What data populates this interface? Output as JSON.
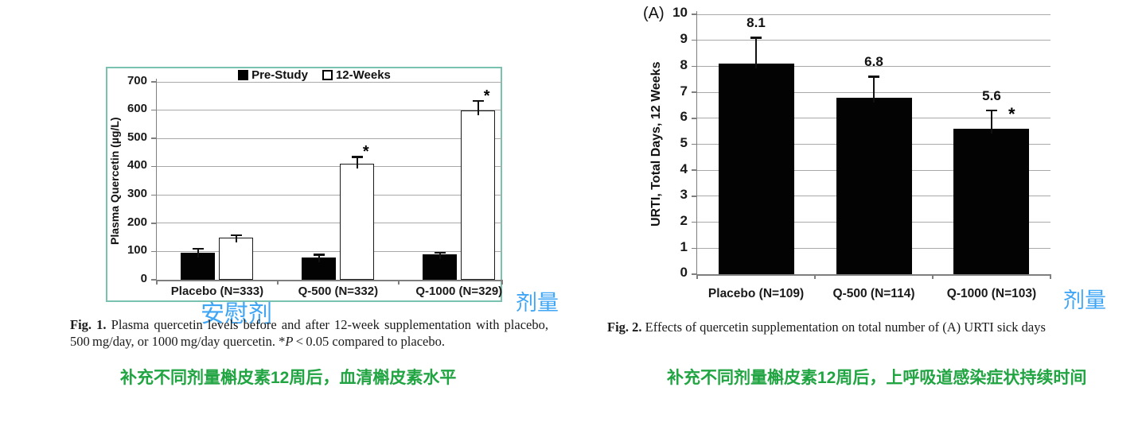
{
  "colors": {
    "teal_frame": "#79C2B0",
    "blue_annotation": "#3FA5F5",
    "green_note": "#21A442",
    "gridline": "#A9A9A9",
    "axis": "#7F7F7F",
    "bar_black": "#030303",
    "bar_white_border": "#1A1A1A"
  },
  "fig1": {
    "caption_label": "Fig. 1.",
    "caption_body_1": " Plasma quercetin levels before and after 12-week supplementation with placebo, 500 mg/day, or 1000 mg/day quercetin. *",
    "caption_pvar": "P",
    "caption_body_2": " < 0.05 compared to placebo.",
    "annotation_placebo": "安慰剂",
    "annotation_dose": "剂量",
    "green_note": "补充不同剂量槲皮素12周后，血清槲皮素水平"
  },
  "fig2": {
    "panel_label": "(A)",
    "caption_label": "Fig. 2.",
    "caption_body": " Effects of quercetin supplementation on total number of (A) URTI sick days",
    "annotation_dose": "剂量",
    "green_note": "补充不同剂量槲皮素12周后，上呼吸道感染症状持续时间"
  },
  "chart_data": [
    {
      "id": "plot1",
      "type": "bar",
      "title": "",
      "ylabel": "Plasma Quercetin (µg/L)",
      "xlabel": "",
      "ylim": [
        0,
        700
      ],
      "ytick_step": 100,
      "grid": true,
      "legend_position": "top",
      "categories": [
        "Placebo (N=333)",
        "Q-500 (N=332)",
        "Q-1000 (N=329)"
      ],
      "series": [
        {
          "name": "Pre-Study",
          "fill": "black",
          "values": [
            95,
            80,
            90
          ],
          "errors": [
            15,
            8,
            6
          ],
          "sig": [
            false,
            false,
            false
          ]
        },
        {
          "name": "12-Weeks",
          "fill": "white",
          "values": [
            150,
            410,
            600
          ],
          "errors": [
            8,
            25,
            33
          ],
          "sig": [
            false,
            true,
            true
          ]
        }
      ],
      "significance_note": "*P < 0.05 compared to placebo"
    },
    {
      "id": "plot2",
      "type": "bar",
      "title": "",
      "ylabel": "URTI, Total Days, 12 Weeks",
      "xlabel": "",
      "ylim": [
        0,
        10
      ],
      "ytick_step": 1,
      "grid": true,
      "legend_position": "none",
      "categories": [
        "Placebo (N=109)",
        "Q-500 (N=114)",
        "Q-1000 (N=103)"
      ],
      "series": [
        {
          "name": "URTI sick days",
          "fill": "black",
          "values": [
            8.1,
            6.8,
            5.6
          ],
          "errors": [
            1.0,
            0.8,
            0.7
          ],
          "sig": [
            false,
            false,
            true
          ],
          "labels": [
            "8.1",
            "6.8",
            "5.6"
          ]
        }
      ]
    }
  ]
}
